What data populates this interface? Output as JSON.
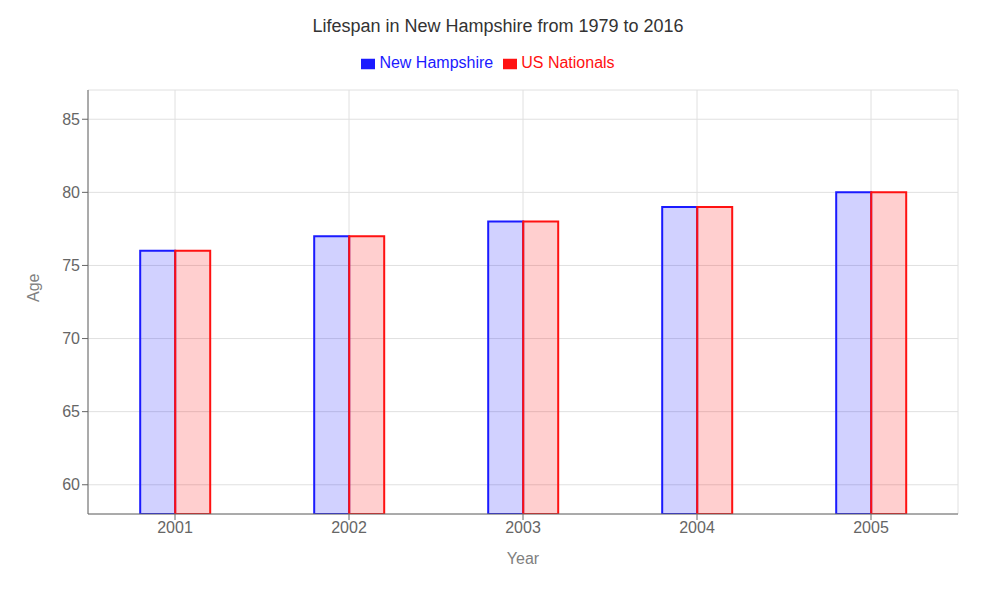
{
  "chart_data": {
    "type": "bar",
    "title": "Lifespan in New Hampshire from 1979 to 2016",
    "xlabel": "Year",
    "ylabel": "Age",
    "categories": [
      2001,
      2002,
      2003,
      2004,
      2005
    ],
    "series": [
      {
        "name": "New Hampshire",
        "color": "#1a1aff",
        "values": [
          76,
          77,
          78,
          79,
          80
        ]
      },
      {
        "name": "US Nationals",
        "color": "#ff1111",
        "values": [
          76,
          77,
          78,
          79,
          80
        ]
      }
    ],
    "ylim": [
      58,
      87
    ],
    "yticks": [
      60,
      65,
      70,
      75,
      80,
      85
    ],
    "grid": true,
    "legend": "top"
  }
}
